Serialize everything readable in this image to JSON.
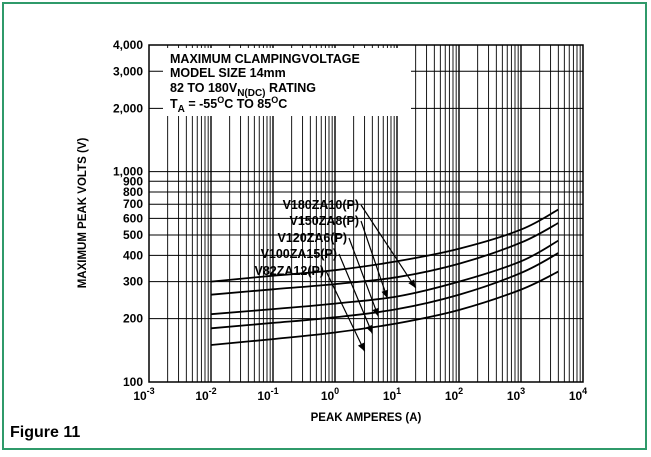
{
  "figure": {
    "label": "Figure 11"
  },
  "chart_data": {
    "type": "line",
    "xscale": "log",
    "yscale": "log",
    "xlim": [
      0.001,
      10000
    ],
    "ylim": [
      100,
      4000
    ],
    "xlabel": "PEAK AMPERES (A)",
    "ylabel": "MAXIMUM PEAK VOLTS (V)",
    "x_tick_exponents": [
      "-3",
      "-2",
      "-1",
      "0",
      "1",
      "2",
      "3",
      "4"
    ],
    "y_ticks": [
      {
        "value": 100,
        "label": "100"
      },
      {
        "value": 200,
        "label": "200"
      },
      {
        "value": 300,
        "label": "300"
      },
      {
        "value": 400,
        "label": "400"
      },
      {
        "value": 500,
        "label": "500"
      },
      {
        "value": 600,
        "label": "600"
      },
      {
        "value": 700,
        "label": "700"
      },
      {
        "value": 800,
        "label": "800"
      },
      {
        "value": 900,
        "label": "900"
      },
      {
        "value": 1000,
        "label": "1,000"
      },
      {
        "value": 2000,
        "label": "2,000"
      },
      {
        "value": 3000,
        "label": "3,000"
      },
      {
        "value": 4000,
        "label": "4,000"
      }
    ],
    "annotation": {
      "line1": "MAXIMUM CLAMPINGVOLTAGE",
      "line2": "MODEL SIZE 14mm",
      "line3_pre": "82 TO 180V",
      "line3_sub": "N(DC)",
      "line3_post": " RATING",
      "line4_t": "T",
      "line4_t_sub": "A",
      "line4_mid": " = -55",
      "line4_deg": "O",
      "line4_c_to": "C TO 85",
      "line4_deg2": "O",
      "line4_c": "C"
    },
    "series": [
      {
        "name": "V180ZA10(P)",
        "x": [
          0.01,
          0.1,
          1,
          10,
          100,
          1000,
          4000
        ],
        "y": [
          300,
          320,
          340,
          375,
          430,
          530,
          660
        ],
        "label_point": [
          20,
          280
        ]
      },
      {
        "name": "V150ZA8(P)",
        "x": [
          0.01,
          0.1,
          1,
          10,
          100,
          1000,
          4000
        ],
        "y": [
          260,
          276,
          292,
          315,
          365,
          460,
          570
        ],
        "label_point": [
          7,
          250
        ]
      },
      {
        "name": "V120ZA6(P)",
        "x": [
          0.01,
          0.1,
          1,
          10,
          100,
          1000,
          4000
        ],
        "y": [
          210,
          222,
          236,
          255,
          300,
          375,
          470
        ],
        "label_point": [
          5,
          205
        ]
      },
      {
        "name": "V100ZA15(P)",
        "x": [
          0.01,
          0.1,
          1,
          10,
          100,
          1000,
          4000
        ],
        "y": [
          180,
          191,
          203,
          222,
          260,
          330,
          410
        ],
        "label_point": [
          4,
          170
        ]
      },
      {
        "name": "V82ZA12(P)",
        "x": [
          0.01,
          0.1,
          1,
          10,
          100,
          1000,
          4000
        ],
        "y": [
          150,
          160,
          172,
          190,
          220,
          275,
          335
        ],
        "label_point": [
          3,
          140
        ]
      }
    ]
  }
}
